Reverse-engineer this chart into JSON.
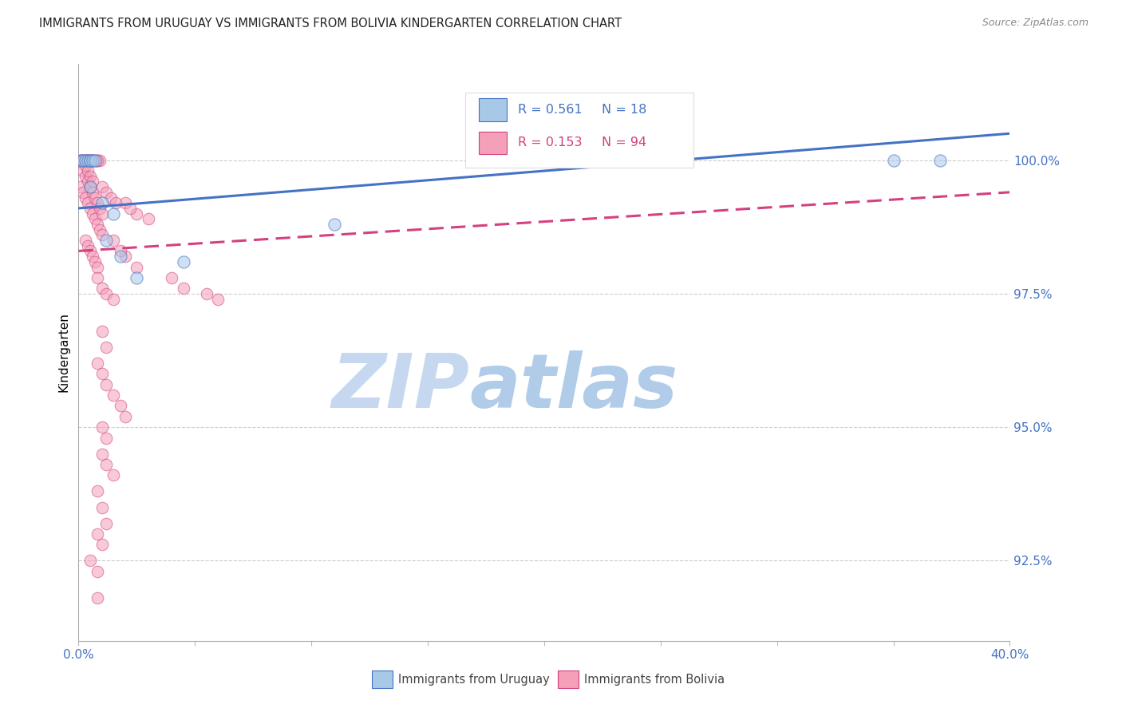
{
  "title": "IMMIGRANTS FROM URUGUAY VS IMMIGRANTS FROM BOLIVIA KINDERGARTEN CORRELATION CHART",
  "source": "Source: ZipAtlas.com",
  "ylabel": "Kindergarten",
  "x_min": 0.0,
  "x_max": 0.4,
  "y_min": 91.0,
  "y_max": 101.8,
  "y_ticks": [
    92.5,
    95.0,
    97.5,
    100.0
  ],
  "x_ticks": [
    0.0,
    0.05,
    0.1,
    0.15,
    0.2,
    0.25,
    0.3,
    0.35,
    0.4
  ],
  "color_blue": "#a8c8e8",
  "color_pink": "#f4a0b8",
  "color_blue_line": "#4472C4",
  "color_pink_line": "#d44080",
  "color_axis_labels": "#4472C4",
  "watermark_zip_color": "#c8dff5",
  "watermark_atlas_color": "#b0c8e8",
  "background_color": "#ffffff",
  "grid_color": "#cccccc",
  "legend_label_blue": "Immigrants from Uruguay",
  "legend_label_pink": "Immigrants from Bolivia",
  "legend_blue_r": "R = 0.561",
  "legend_blue_n": "N = 18",
  "legend_pink_r": "R = 0.153",
  "legend_pink_n": "N = 94",
  "uruguay_points": [
    [
      0.001,
      100.0
    ],
    [
      0.002,
      100.0
    ],
    [
      0.003,
      100.0
    ],
    [
      0.004,
      100.0
    ],
    [
      0.005,
      100.0
    ],
    [
      0.005,
      100.0
    ],
    [
      0.006,
      100.0
    ],
    [
      0.007,
      100.0
    ],
    [
      0.01,
      99.2
    ],
    [
      0.012,
      98.5
    ],
    [
      0.015,
      99.0
    ],
    [
      0.018,
      98.2
    ],
    [
      0.025,
      97.8
    ],
    [
      0.045,
      98.1
    ],
    [
      0.11,
      98.8
    ],
    [
      0.35,
      100.0
    ],
    [
      0.37,
      100.0
    ],
    [
      0.005,
      99.5
    ]
  ],
  "bolivia_points": [
    [
      0.001,
      100.0
    ],
    [
      0.001,
      100.0
    ],
    [
      0.001,
      100.0
    ],
    [
      0.002,
      100.0
    ],
    [
      0.002,
      100.0
    ],
    [
      0.002,
      100.0
    ],
    [
      0.003,
      100.0
    ],
    [
      0.003,
      100.0
    ],
    [
      0.003,
      100.0
    ],
    [
      0.003,
      100.0
    ],
    [
      0.004,
      100.0
    ],
    [
      0.004,
      100.0
    ],
    [
      0.004,
      100.0
    ],
    [
      0.005,
      100.0
    ],
    [
      0.005,
      100.0
    ],
    [
      0.006,
      100.0
    ],
    [
      0.006,
      100.0
    ],
    [
      0.006,
      100.0
    ],
    [
      0.007,
      100.0
    ],
    [
      0.007,
      100.0
    ],
    [
      0.008,
      100.0
    ],
    [
      0.008,
      100.0
    ],
    [
      0.008,
      100.0
    ],
    [
      0.009,
      100.0
    ],
    [
      0.001,
      99.5
    ],
    [
      0.002,
      99.4
    ],
    [
      0.003,
      99.3
    ],
    [
      0.004,
      99.2
    ],
    [
      0.005,
      99.1
    ],
    [
      0.006,
      99.0
    ],
    [
      0.007,
      98.9
    ],
    [
      0.008,
      98.8
    ],
    [
      0.009,
      98.7
    ],
    [
      0.01,
      98.6
    ],
    [
      0.003,
      98.5
    ],
    [
      0.004,
      98.4
    ],
    [
      0.005,
      98.3
    ],
    [
      0.006,
      98.2
    ],
    [
      0.007,
      98.1
    ],
    [
      0.008,
      98.0
    ],
    [
      0.002,
      99.8
    ],
    [
      0.003,
      99.7
    ],
    [
      0.004,
      99.6
    ],
    [
      0.005,
      99.5
    ],
    [
      0.006,
      99.4
    ],
    [
      0.007,
      99.3
    ],
    [
      0.008,
      99.2
    ],
    [
      0.009,
      99.1
    ],
    [
      0.01,
      99.0
    ],
    [
      0.003,
      99.9
    ],
    [
      0.004,
      99.8
    ],
    [
      0.005,
      99.7
    ],
    [
      0.006,
      99.6
    ],
    [
      0.01,
      99.5
    ],
    [
      0.012,
      99.4
    ],
    [
      0.008,
      97.8
    ],
    [
      0.01,
      97.6
    ],
    [
      0.012,
      97.5
    ],
    [
      0.015,
      97.4
    ],
    [
      0.01,
      96.8
    ],
    [
      0.012,
      96.5
    ],
    [
      0.008,
      96.2
    ],
    [
      0.01,
      96.0
    ],
    [
      0.012,
      95.8
    ],
    [
      0.015,
      95.6
    ],
    [
      0.018,
      95.4
    ],
    [
      0.02,
      95.2
    ],
    [
      0.01,
      95.0
    ],
    [
      0.012,
      94.8
    ],
    [
      0.01,
      94.5
    ],
    [
      0.012,
      94.3
    ],
    [
      0.015,
      94.1
    ],
    [
      0.008,
      93.8
    ],
    [
      0.01,
      93.5
    ],
    [
      0.012,
      93.2
    ],
    [
      0.008,
      93.0
    ],
    [
      0.01,
      92.8
    ],
    [
      0.005,
      92.5
    ],
    [
      0.008,
      92.3
    ],
    [
      0.008,
      91.8
    ],
    [
      0.04,
      97.8
    ],
    [
      0.045,
      97.6
    ],
    [
      0.055,
      97.5
    ],
    [
      0.06,
      97.4
    ],
    [
      0.02,
      98.2
    ],
    [
      0.025,
      98.0
    ],
    [
      0.015,
      98.5
    ],
    [
      0.018,
      98.3
    ],
    [
      0.025,
      99.0
    ],
    [
      0.03,
      98.9
    ],
    [
      0.02,
      99.2
    ],
    [
      0.022,
      99.1
    ],
    [
      0.014,
      99.3
    ],
    [
      0.016,
      99.2
    ]
  ]
}
